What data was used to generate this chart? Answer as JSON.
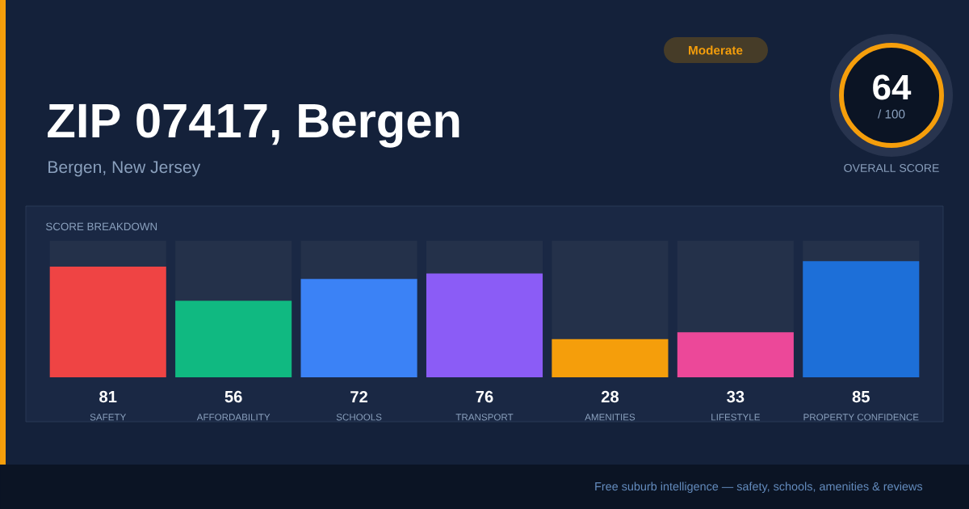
{
  "chart_data": {
    "type": "bar",
    "title": "ZIP 07417, Bergen",
    "subtitle": "Bergen, New Jersey",
    "categories": [
      "SAFETY",
      "AFFORDABILITY",
      "SCHOOLS",
      "TRANSPORT",
      "AMENITIES",
      "LIFESTYLE",
      "PROPERTY CONFIDENCE"
    ],
    "values": [
      81,
      56,
      72,
      76,
      28,
      33,
      85
    ],
    "colors": [
      "#ef4444",
      "#10b981",
      "#3b82f6",
      "#8b5cf6",
      "#f59e0b",
      "#ec4899",
      "#1d6fd8"
    ],
    "ylim": [
      0,
      100
    ],
    "data_labels": true,
    "annotations": [
      "SCORE BREAKDOWN",
      "Moderate",
      "64",
      "/ 100",
      "OVERALL SCORE",
      "Free suburb intelligence — safety, schools, amenities & reviews"
    ]
  }
}
